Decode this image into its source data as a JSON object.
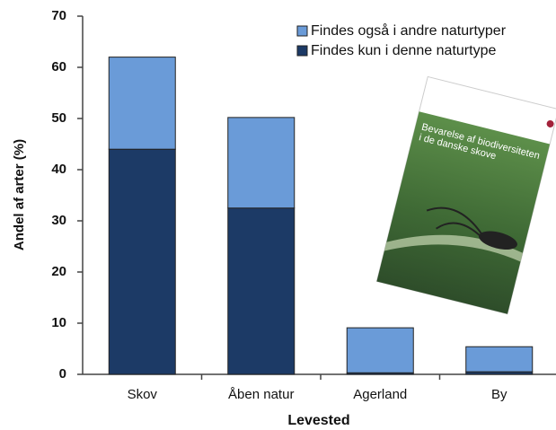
{
  "chart_data": {
    "type": "stacked_bar",
    "xlabel": "Levested",
    "ylabel": "Andel af arter (%)",
    "categories": [
      "Skov",
      "Åben natur",
      "Agerland",
      "By"
    ],
    "series": [
      {
        "name": "Findes også i andre naturtyper",
        "color": "#6a9bd8",
        "values": [
          18,
          17.7,
          8.8,
          4.9
        ]
      },
      {
        "name": "Findes kun i denne naturtype",
        "color": "#1c3a66",
        "values": [
          44,
          32.5,
          0.3,
          0.5
        ]
      }
    ],
    "ylim": [
      0,
      70
    ],
    "yticks": [
      0,
      10,
      20,
      30,
      40,
      50,
      60,
      70
    ],
    "grid": false,
    "legend": "upper right"
  },
  "cover": {
    "title": "Bevarelse af biodiversiteten i de danske skove"
  }
}
